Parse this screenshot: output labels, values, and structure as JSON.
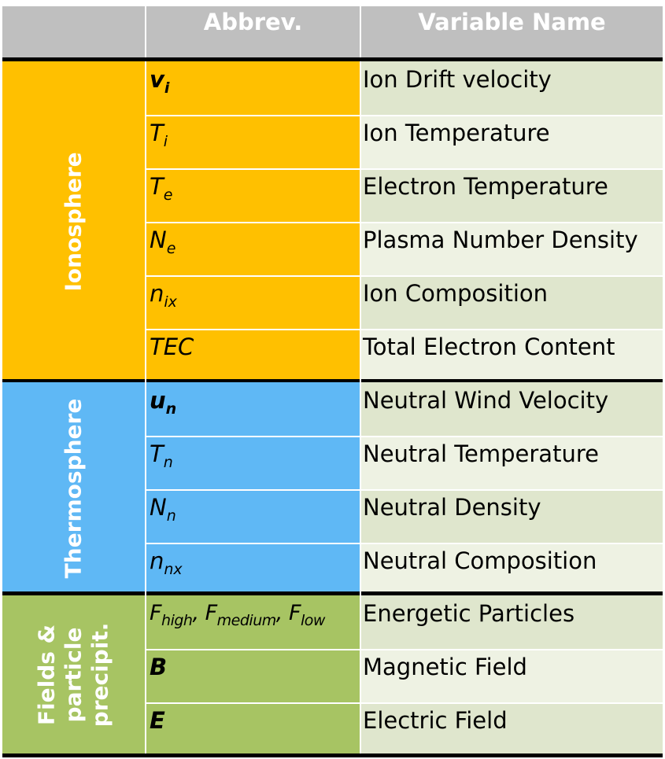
{
  "header": {
    "col0": "",
    "col1": "Abbrev.",
    "col2": "Variable Name"
  },
  "groups": [
    {
      "label": "Ionosphere",
      "rows": [
        {
          "sym": "v",
          "sub": "i",
          "style": "bold",
          "name": "Ion Drift velocity"
        },
        {
          "sym": "T",
          "sub": "i",
          "style": "italic",
          "name": "Ion Temperature"
        },
        {
          "sym": "T",
          "sub": "e",
          "style": "italic",
          "name": "Electron Temperature"
        },
        {
          "sym": "N",
          "sub": "e",
          "style": "italic",
          "name": "Plasma Number Density"
        },
        {
          "sym": "n",
          "sub": "ix",
          "style": "italic",
          "name": "Ion Composition"
        },
        {
          "sym": "TEC",
          "sub": "",
          "style": "italic",
          "name": "Total Electron Content"
        }
      ]
    },
    {
      "label": "Thermosphere",
      "rows": [
        {
          "sym": "u",
          "sub": "n",
          "style": "bold",
          "name": "Neutral Wind Velocity"
        },
        {
          "sym": "T",
          "sub": "n",
          "style": "italic",
          "name": "Neutral Temperature"
        },
        {
          "sym": "N",
          "sub": "n",
          "style": "italic",
          "name": "Neutral Density"
        },
        {
          "sym": "n",
          "sub": "nx",
          "style": "italic",
          "name": "Neutral Composition"
        }
      ]
    },
    {
      "label_lines": [
        "Fields &",
        "particle",
        "precipit."
      ],
      "rows": [
        {
          "sym_parts": [
            {
              "sym": "F",
              "sub": "high"
            },
            {
              "sym": "F",
              "sub": "medium"
            },
            {
              "sym": "F",
              "sub": "low"
            }
          ],
          "separator": ", ",
          "style": "italic",
          "name": "Energetic Particles"
        },
        {
          "sym": "B",
          "sub": "",
          "style": "bold",
          "name": "Magnetic Field"
        },
        {
          "sym": "E",
          "sub": "",
          "style": "bold",
          "name": "Electric Field"
        }
      ]
    }
  ],
  "colors": {
    "header": "#bfbfbf",
    "ionosphere": "#ffc000",
    "thermosphere": "#5fb8f5",
    "fields": "#a7c463",
    "name_cell_dark": "#dfe6cd",
    "name_cell_light": "#eef2e3"
  }
}
